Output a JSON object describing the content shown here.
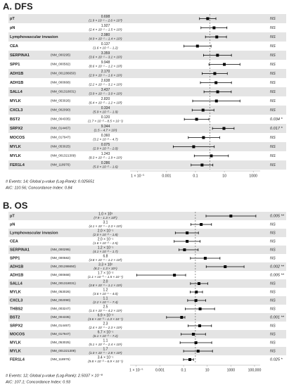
{
  "chart_data": [
    {
      "type": "forest",
      "title": "A. DFS",
      "log_x": true,
      "categories": [
        "pT",
        "pN",
        "Lymphovascular invasion",
        "CEA",
        "SERPINA1",
        "SPP1",
        "ADH1B",
        "ADH1B",
        "SALL4",
        "MYLK",
        "CXCL3",
        "BST2",
        "SRPX2",
        "MOCOS",
        "MYLK",
        "MYLK",
        "FER1L4"
      ],
      "accessions": [
        null,
        null,
        null,
        null,
        "(NM_000295)",
        "(NM_000582)",
        "(NM_001286650)",
        "(NM_000668)",
        "(NM_001318031)",
        "(NM_053026)",
        "(NM_002090)",
        "(NM_004335)",
        "(NM_014467)",
        "(NM_017947)",
        "(NM_053025)",
        "(NM_001321309)",
        "(NM_118976)"
      ],
      "values": [
        0.698,
        1.927,
        2.98,
        0.137,
        3.359,
        9.948,
        2.17,
        2.638,
        3.437,
        2.82,
        0.334,
        0.12,
        9.344,
        0.36,
        0.075,
        1.243,
        0.286
      ],
      "value_labels": [
        "0.698",
        "1.927",
        "2.980",
        "0.137",
        "3.359",
        "9.948",
        "2.170",
        "2.638",
        "3.437",
        "2.820",
        "0.334",
        "0.120",
        "9.344",
        "0.360",
        "0.075",
        "1.243",
        "0.286"
      ],
      "lower": [
        0.19,
        0.24,
        0.49,
        0.016,
        0.36,
        0.86,
        0.29,
        0.22,
        0.39,
        0.064,
        0.059,
        0.017,
        1.5,
        0.032,
        0.0029,
        0.083,
        0.05
      ],
      "upper": [
        2.6,
        15,
        14,
        1.2,
        31,
        120,
        16,
        31,
        30,
        120,
        1.9,
        0.85,
        47,
        4.7,
        2.0,
        19,
        1.6
      ],
      "ci_labels": [
        "(1.9 × 10⁻¹ – 2.6 × 10⁰)",
        "(2.4 × 10⁻¹ – 1.5 × 10¹)",
        "(4.9 × 10⁻¹ – 1.4 × 10¹)",
        "(1.6 × 10⁻² – 1.2)",
        "(3.6 × 10⁻¹ – 3.1 × 10¹)",
        "(8.6 × 10⁻¹ – 1.2 × 10²)",
        "(2.9 × 10⁻¹ – 1.6 × 10¹)",
        "(2.2 × 10⁻¹ – 3.1 × 10¹)",
        "(3.9 × 10⁻¹ – 3.0 × 10¹)",
        "(6.4 × 10⁻² – 1.2 × 10²)",
        "(5.9 × 10⁻² – 1.9)",
        "(1.7 × 10⁻² – 8.5 × 10⁻¹)",
        "(1.5 – 4.7 × 10¹)",
        "(3.2 × 10⁻² – 4.7)",
        "(2.9 × 10⁻³ – 2.0)",
        "(8.3 × 10⁻² – 1.9 × 10¹)",
        "(5.0 × 10⁻² – 1.6)"
      ],
      "p_labels": [
        "NS",
        "NS",
        "NS",
        "NS",
        "NS",
        "NS",
        "NS",
        "NS",
        "NS",
        "NS",
        "NS",
        "0.034 *",
        "0.017 *",
        "NS",
        "NS",
        "NS",
        "NS"
      ],
      "xlim": [
        3e-06,
        3000
      ],
      "xticks": [
        {
          "value": 1e-05,
          "label": "1 × 10⁻⁵"
        },
        0.001,
        0.1,
        10,
        1000
      ],
      "footnotes": [
        "# Events: 14; Global p-value (Log-Rank): 0.025651",
        "AIC: 110.56; Concordance Index: 0.84"
      ]
    },
    {
      "type": "forest",
      "title": "B. OS",
      "log_x": true,
      "categories": [
        "pT",
        "pN",
        "Lymphovascular invasion",
        "CEA",
        "SERPINA1",
        "SPP1",
        "ADH1B",
        "ADH1B",
        "SALL4",
        "MYLK",
        "CXCL3",
        "THBS2",
        "BST2",
        "SRPX2",
        "MOCOS",
        "MYLK",
        "MYLK",
        "FER1L4"
      ],
      "accessions": [
        null,
        null,
        null,
        null,
        "(NM_000295)",
        "(NM_000582)",
        "(NM_001286650)",
        "(NM_000668)",
        "(NM_001318031)",
        "(NM_053026)",
        "(NM_002090)",
        "(NM_003247)",
        "(NM_004335)",
        "(NM_014467)",
        "(NM_017947)",
        "(NM_053025)",
        "(NM_001321309)",
        "(NM_118976)"
      ],
      "values": [
        1000,
        3.1,
        0.2,
        0.2,
        0.12,
        6.8,
        330,
        0.017,
        2.0,
        1.2,
        1.1,
        2.5,
        0.069,
        2.3,
        0.67,
        1.1,
        1.7,
        0.34
      ],
      "value_labels": [
        "1.0 × 10³",
        "3.1",
        "2.0 × 10⁻¹",
        "2.0 × 10⁻¹",
        "1.2 × 10⁻¹",
        "6.8",
        "3.3 × 10²",
        "1.7 × 10⁻²",
        "2.0",
        "1.2",
        "1.1",
        "2.5",
        "6.9 × 10⁻²",
        "2.3",
        "6.7 × 10⁻¹",
        "1.1",
        "1.7",
        "3.4 × 10⁻¹"
      ],
      "lower": [
        7.9,
        0.41,
        0.02,
        0.016,
        0.041,
        0.38,
        8.2,
        1.1e-05,
        0.38,
        0.36,
        0.22,
        0.14,
        0.0036,
        0.24,
        0.061,
        0.051,
        0.1,
        0.098
      ],
      "upper": [
        130000,
        23,
        1.8,
        2.5,
        1.7,
        120,
        13000,
        0.15,
        11,
        4.0,
        7.4,
        42,
        0.13,
        23,
        7.2,
        24,
        28,
        0.69
      ],
      "ci_labels": [
        "(7.9 – 1.3 × 10⁵)",
        "(4.1 × 10⁻¹ – 2.3 × 10¹)",
        "(2.0 × 10⁻² – 1.8)",
        "(1.6 × 10⁻² – 2.5)",
        "(4.1 × 10⁻² – 1.7)",
        "(3.8 × 10⁻¹ – 1.2 × 10²)",
        "(8.2 – 1.3 × 10⁴)",
        "(1.1 × 10⁻⁵ – 1.5 × 10⁻¹)",
        "(3.8 × 10⁻¹ – 1.1 × 10¹)",
        "(3.6 × 10⁻¹ – 4.0)",
        "(2.2 × 10⁻¹ – 7.4)",
        "(1.4 × 10⁻¹ – 4.2 × 10¹)",
        "(3.6 × 10⁻³ – 1.3 × 10⁻¹)",
        "(2.4 × 10⁻¹ – 2.3 × 10¹)",
        "(6.1 × 10⁻² – 7.2)",
        "(5.1 × 10⁻² – 2.4 × 10¹)",
        "(1.0 × 10⁻¹ – 2.8 × 10¹)",
        "(9.8 × 10⁻² – 6.9 × 10⁻¹)"
      ],
      "p_labels": [
        "0.005 **",
        "NS",
        "NS",
        "NS",
        "NS",
        "NS",
        "0.002 **",
        "0.005 **",
        "NS",
        "NS",
        "NS",
        "NS",
        "0.001 **",
        "NS",
        "NS",
        "NS",
        "NS",
        "0.025 *"
      ],
      "xlim": [
        3e-06,
        300000
      ],
      "xticks": [
        {
          "value": 1e-05,
          "label": "1 × 10⁻⁵"
        },
        0.001,
        0.1,
        10,
        1000,
        {
          "value": 100000,
          "label": "100,000"
        }
      ],
      "footnotes": [
        "# Events: 12; Global p-value (Log-Rank): 2.5037 × 10⁻⁸",
        "AIC: 107.1; Concordance Index: 0.93"
      ]
    }
  ]
}
